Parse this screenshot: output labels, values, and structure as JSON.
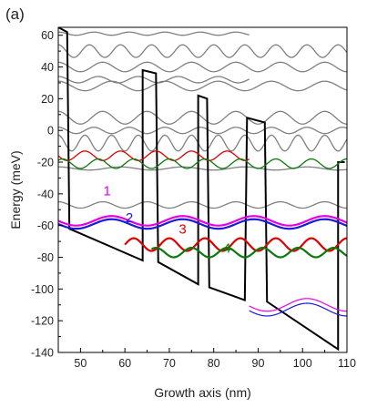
{
  "chart_data": {
    "type": "line",
    "panel_label": "(a)",
    "title": "",
    "xlabel": "Growth axis (nm)",
    "ylabel": "Energy (meV)",
    "xlim": [
      45,
      110
    ],
    "ylim": [
      -140,
      65
    ],
    "xticks": [
      50,
      60,
      70,
      80,
      90,
      100,
      110
    ],
    "yticks": [
      -140,
      -120,
      -100,
      -80,
      -60,
      -40,
      -20,
      0,
      20,
      40,
      60
    ],
    "grid": false,
    "legend": "none",
    "band_profile": {
      "name": "conduction band edge",
      "color": "#000000",
      "points": [
        [
          45,
          65
        ],
        [
          47,
          62
        ],
        [
          47.5,
          -62
        ],
        [
          64,
          -82
        ],
        [
          64,
          38
        ],
        [
          67,
          36
        ],
        [
          67.5,
          -83
        ],
        [
          76.5,
          -97
        ],
        [
          76.5,
          22
        ],
        [
          78.5,
          20
        ],
        [
          79,
          -99
        ],
        [
          87,
          -107
        ],
        [
          87.5,
          8
        ],
        [
          91.5,
          5
        ],
        [
          92,
          -108
        ],
        [
          108,
          -138
        ],
        [
          108,
          -20
        ],
        [
          109.5,
          -20
        ]
      ]
    },
    "series": [
      {
        "name": "1",
        "color": "#e600e6",
        "x_range": [
          45,
          110
        ],
        "level": -57,
        "amplitude": 3,
        "period": 16,
        "phase": 57
      },
      {
        "name": "2",
        "color": "#1a1ad9",
        "x_range": [
          45,
          110
        ],
        "level": -59,
        "amplitude": 3,
        "period": 16,
        "phase": 57
      },
      {
        "name": "3",
        "color": "#e00000",
        "x_range": [
          60,
          110
        ],
        "level": -72,
        "amplitude": 4,
        "period": 8,
        "phase": 70
      },
      {
        "name": "4",
        "color": "#0a7a0a",
        "x_range": [
          66,
          110
        ],
        "level": -77,
        "amplitude": 3,
        "period": 8,
        "phase": 75
      }
    ],
    "bound_states_upper": [
      {
        "color": "#e00000",
        "x_range": [
          45,
          88
        ],
        "level": -16,
        "amplitude": 3,
        "period": 8,
        "phase": 51
      },
      {
        "color": "#0a7a0a",
        "x_range": [
          45,
          110
        ],
        "level": -21,
        "amplitude": 3,
        "period": 8,
        "phase": 54
      }
    ],
    "bound_states_lower": [
      {
        "color": "#e600e6",
        "x_range": [
          88,
          110
        ],
        "level": -110,
        "amplitude": 4,
        "period": 18,
        "phase": 101
      },
      {
        "color": "#1a1ad9",
        "x_range": [
          88,
          110
        ],
        "level": -113,
        "amplitude": 4,
        "period": 18,
        "phase": 101
      }
    ],
    "series_labels": [
      {
        "text": "1",
        "color": "#e600e6",
        "x": 56,
        "y": -41
      },
      {
        "text": "2",
        "color": "#1a1ad9",
        "x": 61,
        "y": -58
      },
      {
        "text": "3",
        "color": "#e00000",
        "x": 73,
        "y": -65
      },
      {
        "text": "4",
        "color": "#0a7a0a",
        "x": 83,
        "y": -77
      }
    ],
    "continuum_states": {
      "color": "#808080",
      "states": [
        {
          "x_range": [
            45,
            88
          ],
          "level": 61,
          "amplitude": 1,
          "period": 8
        },
        {
          "x_range": [
            45,
            110
          ],
          "level": 50,
          "amplitude": 4,
          "period": 7
        },
        {
          "x_range": [
            45,
            88
          ],
          "level": 32,
          "amplitude": 2,
          "period": 9
        },
        {
          "x_range": [
            45,
            110
          ],
          "level": 40,
          "amplitude": 3,
          "period": 10
        },
        {
          "x_range": [
            45,
            110
          ],
          "level": 28,
          "amplitude": 3,
          "period": 12
        },
        {
          "x_range": [
            45,
            110
          ],
          "level": 8,
          "amplitude": 4,
          "period": 10
        },
        {
          "x_range": [
            45,
            110
          ],
          "level": 0,
          "amplitude": 2,
          "period": 8
        },
        {
          "x_range": [
            45,
            110
          ],
          "level": -8,
          "amplitude": 5,
          "period": 6
        },
        {
          "x_range": [
            45,
            110
          ],
          "level": -24,
          "amplitude": 1,
          "period": 14
        },
        {
          "x_range": [
            45,
            110
          ],
          "level": -47,
          "amplitude": 2,
          "period": 10
        }
      ]
    }
  }
}
